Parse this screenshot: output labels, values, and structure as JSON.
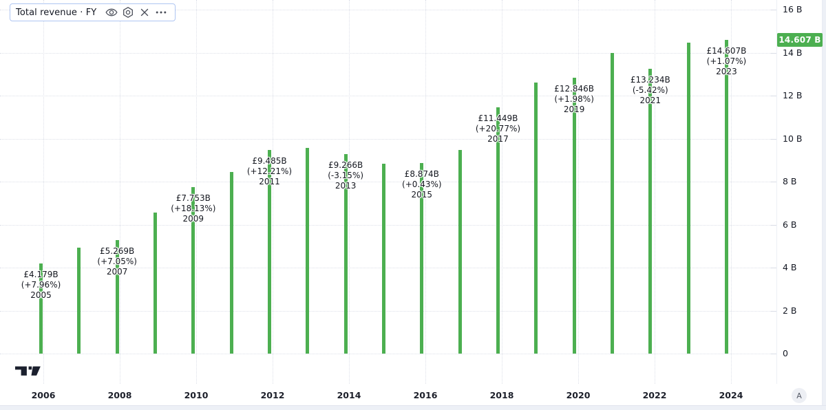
{
  "legend": {
    "title": "Total revenue · FY",
    "actions": [
      {
        "label": "toggle visibility",
        "icon": "eye-icon"
      },
      {
        "label": "settings",
        "icon": "gear-icon"
      },
      {
        "label": "remove",
        "icon": "close-icon"
      },
      {
        "label": "more options",
        "icon": "ellipsis-icon"
      }
    ]
  },
  "price_axis": {
    "tick_labels": [
      "16 B",
      "14 B",
      "12 B",
      "10 B",
      "8 B",
      "6 B",
      "4 B",
      "2 B",
      "0"
    ],
    "tick_values": [
      16,
      14,
      12,
      10,
      8,
      6,
      4,
      2,
      0
    ],
    "last_value_badge": "14.607 B"
  },
  "time_axis": {
    "labels": [
      "2006",
      "2008",
      "2010",
      "2012",
      "2014",
      "2016",
      "2018",
      "2020",
      "2022",
      "2024"
    ],
    "label_years": [
      2006,
      2008,
      2010,
      2012,
      2014,
      2016,
      2018,
      2020,
      2022,
      2024
    ]
  },
  "colors": {
    "bar": "#4caf50",
    "badge_bg": "#4caf50",
    "badge_text": "#ffffff",
    "label_text": "#14171f",
    "grid": "#dcdfe8"
  },
  "accessibility_button": "A",
  "chart_data": {
    "type": "bar",
    "title": "Total revenue · FY",
    "xlabel": "",
    "ylabel": "",
    "unit": "billions GBP",
    "ylim": [
      0,
      16
    ],
    "grid": true,
    "bar_color": "#4caf50",
    "x": [
      2005,
      2006,
      2007,
      2008,
      2009,
      2010,
      2011,
      2012,
      2013,
      2014,
      2015,
      2016,
      2017,
      2018,
      2019,
      2020,
      2021,
      2022,
      2023
    ],
    "values": [
      4.179,
      4.92,
      5.269,
      6.56,
      7.753,
      8.45,
      9.485,
      9.57,
      9.266,
      8.84,
      8.874,
      9.48,
      11.449,
      12.6,
      12.846,
      13.99,
      13.234,
      14.45,
      14.607
    ],
    "last_value": 14.607,
    "annotations": [
      {
        "year": "2005",
        "value": "£4.179B",
        "change": "(+7.96%)"
      },
      {
        "year": "2007",
        "value": "£5.269B",
        "change": "(+7.05%)"
      },
      {
        "year": "2009",
        "value": "£7.753B",
        "change": "(+18.13%)"
      },
      {
        "year": "2011",
        "value": "£9.485B",
        "change": "(+12.21%)"
      },
      {
        "year": "2013",
        "value": "£9.266B",
        "change": "(-3.15%)"
      },
      {
        "year": "2015",
        "value": "£8.874B",
        "change": "(+0.43%)"
      },
      {
        "year": "2017",
        "value": "£11.449B",
        "change": "(+20.77%)"
      },
      {
        "year": "2019",
        "value": "£12.846B",
        "change": "(+1.98%)"
      },
      {
        "year": "2021",
        "value": "£13.234B",
        "change": "(-5.42%)"
      },
      {
        "year": "2023",
        "value": "£14.607B",
        "change": "(+1.07%)"
      }
    ]
  }
}
